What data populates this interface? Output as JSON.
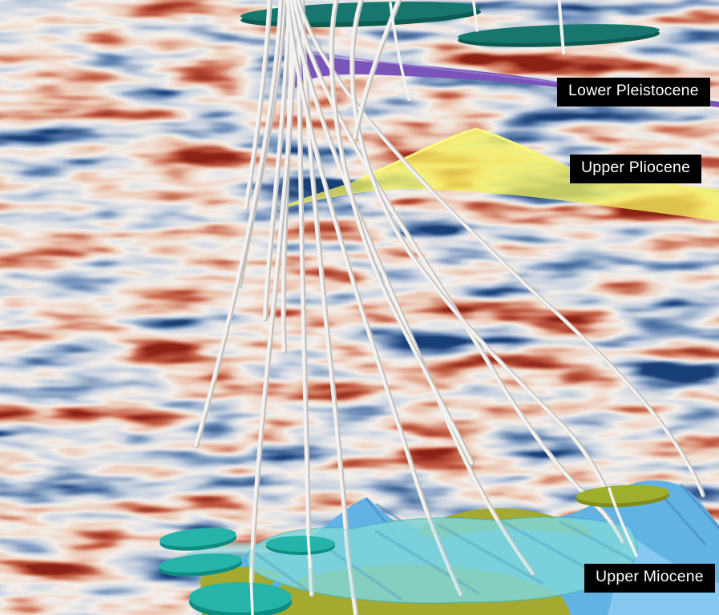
{
  "labels": {
    "lower_pleistocene": "Lower Pleistocene",
    "upper_pliocene": "Upper Pliocene",
    "upper_miocene": "Upper Miocene"
  },
  "colors": {
    "label-bg": "#000000",
    "label-text": "#ffffff",
    "horizon-purple": "#7a54b8",
    "horizon-purple-light": "#9b7bd6",
    "horizon-yellow": "#f3ef5e",
    "horizon-yellow-light": "#fdfb8a",
    "surface-blue": "#63b2e4",
    "surface-blue-dark": "#3f86c5",
    "surface-blue-light": "#8ccdf2",
    "surface-cyan": "#7fd6da",
    "surface-cyan-rim": "#3aa8ad",
    "shadow-blue": "#4689ba",
    "surface-olive": "#a3aa2f",
    "disc-olive": "#9fae2d",
    "disc-olive-rim": "#7f8c1f",
    "disc-teal-dark": "#17776e",
    "disc-teal-rim-dark": "#0d5a52",
    "disc-teal": "#26b4aa",
    "disc-teal-rim": "#0f8c82",
    "well": "#f3f2f0",
    "well-shade": "#c2bfbc",
    "seismic-red": "#b5301e",
    "seismic-blue": "#1c5085",
    "seismic-bg": "#f2ece6"
  }
}
